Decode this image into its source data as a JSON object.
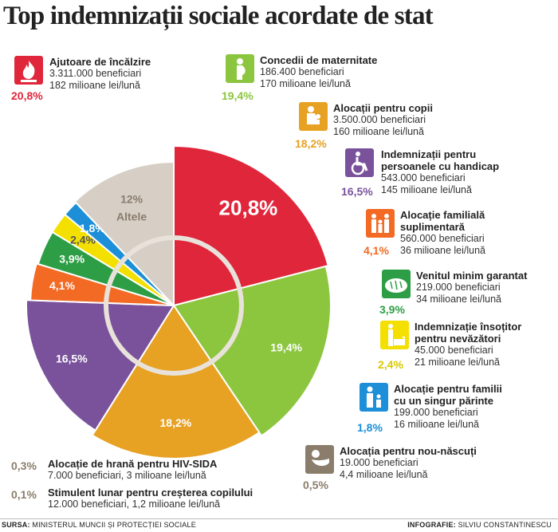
{
  "title": "Top indemnizații sociale acordate de stat",
  "chart_data": {
    "type": "pie",
    "title": "Top indemnizații sociale acordate de stat",
    "slices": [
      {
        "label": "Ajutoare de încălzire",
        "value": 20.8,
        "text": "20,8%",
        "color": "#e0263b"
      },
      {
        "label": "Concedii de maternitate",
        "value": 19.4,
        "text": "19,4%",
        "color": "#8cc63f"
      },
      {
        "label": "Alocații pentru copii",
        "value": 18.2,
        "text": "18,2%",
        "color": "#e7a123"
      },
      {
        "label": "Indemnizații pentru persoanele cu handicap",
        "value": 16.5,
        "text": "16,5%",
        "color": "#7a529c"
      },
      {
        "label": "Alocație familială suplimentară",
        "value": 4.1,
        "text": "4,1%",
        "color": "#f26a24"
      },
      {
        "label": "Venitul minim garantat",
        "value": 3.9,
        "text": "3,9%",
        "color": "#2e9e46"
      },
      {
        "label": "Indemnizație însoțitor pentru nevăzători",
        "value": 2.4,
        "text": "2,4%",
        "color": "#f4e000"
      },
      {
        "label": "Alocație pentru familii cu un singur părinte",
        "value": 1.8,
        "text": "1,8%",
        "color": "#1c8fd8"
      },
      {
        "label": "Altele",
        "value": 12,
        "text": "12%",
        "sublabel": "Altele",
        "color": "#d7cfc5"
      }
    ]
  },
  "legend": [
    {
      "name": [
        "Ajutoare de încălzire"
      ],
      "lines": [
        "3.311.000 beneficiari",
        "182 milioane lei/lună"
      ],
      "pct": "20,8%",
      "color": "#e0263b",
      "icon": "flame-icon"
    },
    {
      "name": [
        "Concedii de maternitate"
      ],
      "lines": [
        "186.400 beneficiari",
        "170 milioane lei/lună"
      ],
      "pct": "19,4%",
      "color": "#8cc63f",
      "icon": "pregnant-woman-icon"
    },
    {
      "name": [
        "Alocații pentru copii"
      ],
      "lines": [
        "3.500.000 beneficiari",
        "160 milioane lei/lună"
      ],
      "pct": "18,2%",
      "color": "#e7a123",
      "icon": "mother-child-icon"
    },
    {
      "name": [
        "Indemnizații pentru",
        "persoanele cu handicap"
      ],
      "lines": [
        "543.000 beneficiari",
        "145 milioane lei/lună"
      ],
      "pct": "16,5%",
      "color": "#7a529c",
      "icon": "wheelchair-icon"
    },
    {
      "name": [
        "Alocație familială",
        "suplimentară"
      ],
      "lines": [
        "560.000 beneficiari",
        "36 milioane lei/lună"
      ],
      "pct": "4,1%",
      "color": "#f26a24",
      "icon": "family-icon"
    },
    {
      "name": [
        "Venitul minim garantat"
      ],
      "lines": [
        "219.000 beneficiari",
        "34 milioane lei/lună"
      ],
      "pct": "3,9%",
      "color": "#2e9e46",
      "icon": "bread-icon"
    },
    {
      "name": [
        "Indemnizație însoțitor",
        "pentru nevăzători"
      ],
      "lines": [
        "45.000 beneficiari",
        "21 milioane lei/lună"
      ],
      "pct": "2,4%",
      "color": "#f4e000",
      "icon": "guide-dog-icon"
    },
    {
      "name": [
        "Alocație pentru familii",
        "cu un singur părinte"
      ],
      "lines": [
        "199.000 beneficiari",
        "16 milioane lei/lună"
      ],
      "pct": "1,8%",
      "color": "#1c8fd8",
      "icon": "single-parent-icon"
    },
    {
      "name": [
        "Alocația pentru nou-născuți"
      ],
      "lines": [
        "19.000 beneficiari",
        "4,4 milioane lei/lună"
      ],
      "pct": "0,5%",
      "color": "#8b7d6b",
      "icon": "newborn-icon"
    }
  ],
  "small_items": [
    {
      "pct": "0,3%",
      "name": "Alocație de hrană pentru HIV-SIDA",
      "line": "7.000 beneficiari, 3 milioane lei/lună"
    },
    {
      "pct": "0,1%",
      "name": "Stimulent lunar pentru creșterea copilului",
      "line": "12.000 beneficiari, 1,2 milioane lei/lună"
    }
  ],
  "footer": {
    "source_label": "SURSA:",
    "source": "MINISTERUL MUNCII ȘI PROTECȚIEI SOCIALE",
    "credit_label": "INFOGRAFIE:",
    "credit": "SILVIU CONSTANTINESCU"
  }
}
